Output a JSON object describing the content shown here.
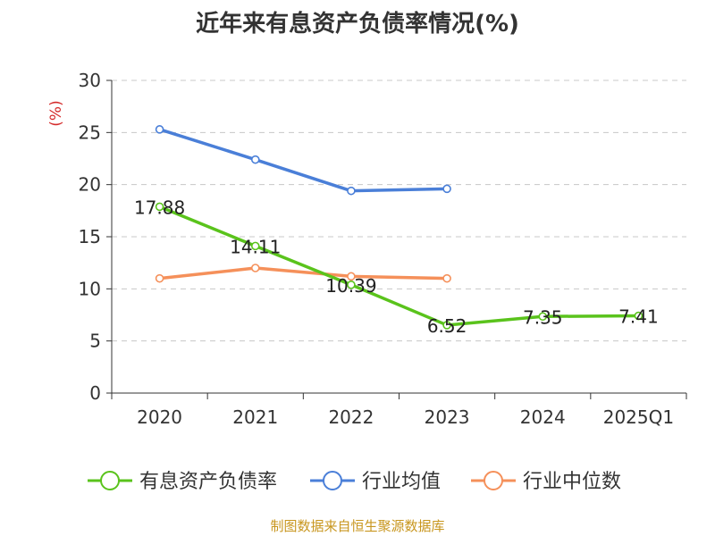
{
  "chart_data": {
    "type": "line",
    "title": "近年来有息资产负债率情况(%)",
    "ylabel": "(%)",
    "categories": [
      "2020",
      "2021",
      "2022",
      "2023",
      "2024",
      "2025Q1"
    ],
    "ylim": [
      0,
      30
    ],
    "yticks": [
      0,
      5,
      10,
      15,
      20,
      25,
      30
    ],
    "grid": true,
    "legend_position": "bottom",
    "series": [
      {
        "name": "有息资产负债率",
        "color": "#5ac31c",
        "values": [
          17.88,
          14.11,
          10.39,
          6.52,
          7.35,
          7.41
        ],
        "labels": [
          "17.88",
          "14.11",
          "10.39",
          "6.52",
          "7.35",
          "7.41"
        ]
      },
      {
        "name": "行业均值",
        "color": "#4a7fd8",
        "values": [
          25.3,
          22.4,
          19.4,
          19.6,
          null,
          null
        ]
      },
      {
        "name": "行业中位数",
        "color": "#f5905a",
        "values": [
          11.0,
          12.0,
          11.2,
          11.0,
          null,
          null
        ]
      }
    ]
  },
  "source": "制图数据来自恒生聚源数据库"
}
